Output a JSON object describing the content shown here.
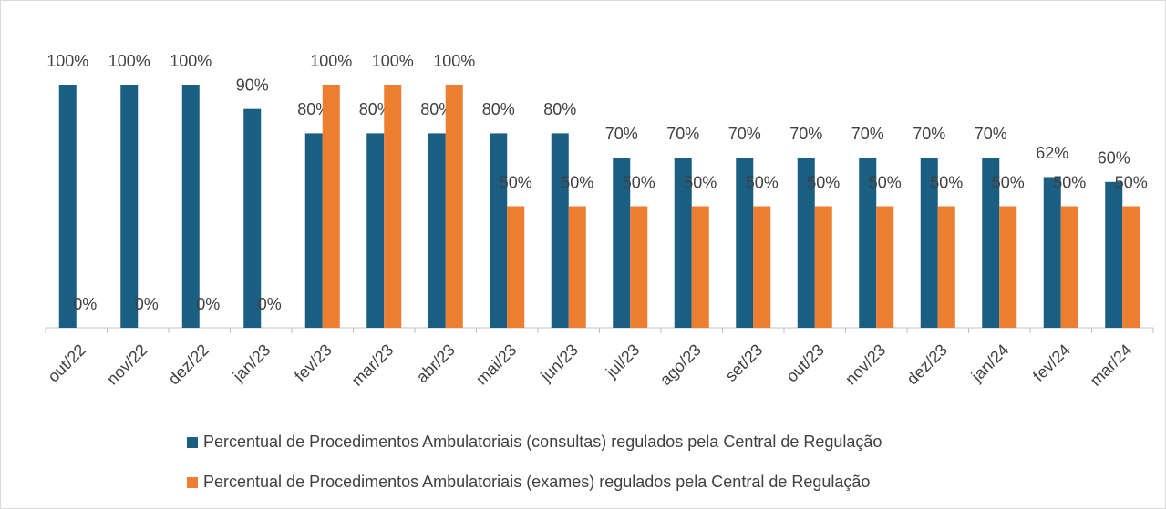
{
  "chart_data": {
    "type": "bar",
    "categories": [
      "out/22",
      "nov/22",
      "dez/22",
      "jan/23",
      "fev/23",
      "mar/23",
      "abr/23",
      "mai/23",
      "jun/23",
      "jul/23",
      "ago/23",
      "set/23",
      "out/23",
      "nov/23",
      "dez/23",
      "jan/24",
      "fev/24",
      "mar/24"
    ],
    "series": [
      {
        "name": "Percentual de Procedimentos Ambulatoriais (consultas) regulados pela Central de Regulação",
        "color": "#1a5e82",
        "values": [
          100,
          100,
          100,
          90,
          80,
          80,
          80,
          80,
          80,
          70,
          70,
          70,
          70,
          70,
          70,
          70,
          62,
          60
        ],
        "value_labels": [
          "100%",
          "100%",
          "100%",
          "90%",
          "80%",
          "80%",
          "80%",
          "80%",
          "80%",
          "70%",
          "70%",
          "70%",
          "70%",
          "70%",
          "70%",
          "70%",
          "62%",
          "60%"
        ]
      },
      {
        "name": "Percentual de Procedimentos Ambulatoriais (exames) regulados pela Central de Regulação",
        "color": "#ed7d31",
        "values": [
          0,
          0,
          0,
          0,
          100,
          100,
          100,
          50,
          50,
          50,
          50,
          50,
          50,
          50,
          50,
          50,
          50,
          50
        ],
        "value_labels": [
          "0%",
          "0%",
          "0%",
          "0%",
          "100%",
          "100%",
          "100%",
          "50%",
          "50%",
          "50%",
          "50%",
          "50%",
          "50%",
          "50%",
          "50%",
          "50%",
          "50%",
          "50%"
        ]
      }
    ],
    "ylim": [
      0,
      100
    ],
    "legend": "bottom"
  }
}
